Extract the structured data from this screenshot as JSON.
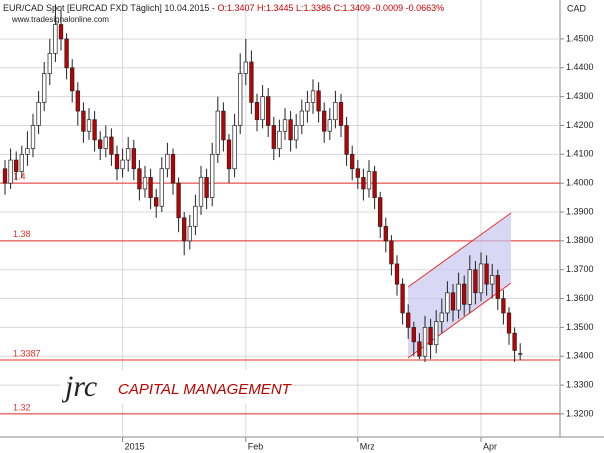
{
  "chart_data": {
    "type": "candlestick",
    "title": "EUR/CAD Spot [EURCAD FXD  Täglich] 10.04.2015 -",
    "ohlc_label": "O:1.3407 H:1.3445 L:1.3386 C:1.3409 -0.0009 -0.0663%",
    "source": "www.tradesignalonline.com",
    "currency": "CAD",
    "logo_mark": "jrc",
    "logo_text": "CAPITAL MANAGEMENT",
    "up_color": "#ffffff",
    "down_color": "#c00000",
    "line_color": "#e8302a",
    "categories": [
      null,
      null,
      null,
      null,
      null,
      null,
      null,
      null,
      null,
      null,
      null,
      null,
      null,
      null,
      null,
      null,
      null,
      null,
      null,
      null,
      null,
      "2015",
      null,
      null,
      null,
      null,
      null,
      null,
      null,
      null,
      null,
      null,
      null,
      null,
      null,
      null,
      null,
      null,
      null,
      null,
      null,
      null,
      null,
      "Feb",
      null,
      null,
      null,
      null,
      null,
      null,
      null,
      null,
      null,
      null,
      null,
      null,
      null,
      null,
      null,
      null,
      null,
      null,
      null,
      "Mrz",
      null,
      null,
      null,
      null,
      null,
      null,
      null,
      null,
      null,
      null,
      null,
      null,
      null,
      null,
      null,
      null,
      null,
      null,
      null,
      null,
      null,
      "Apr",
      null,
      null,
      null,
      null,
      null,
      null,
      null
    ],
    "open": [
      1.405,
      1.4,
      1.408,
      1.404,
      1.41,
      1.412,
      1.42,
      1.428,
      1.438,
      1.445,
      1.455,
      1.45,
      1.44,
      1.432,
      1.425,
      1.418,
      1.422,
      1.415,
      1.412,
      1.416,
      1.41,
      1.405,
      1.408,
      1.412,
      1.405,
      1.398,
      1.402,
      1.395,
      1.392,
      1.405,
      1.41,
      1.4,
      1.388,
      1.38,
      1.385,
      1.392,
      1.402,
      1.395,
      1.41,
      1.425,
      1.415,
      1.405,
      1.42,
      1.438,
      1.442,
      1.428,
      1.422,
      1.43,
      1.42,
      1.412,
      1.418,
      1.422,
      1.415,
      1.42,
      1.425,
      1.428,
      1.432,
      1.425,
      1.418,
      1.422,
      1.428,
      1.42,
      1.41,
      1.405,
      1.402,
      1.398,
      1.404,
      1.395,
      1.385,
      1.38,
      1.372,
      1.365,
      1.355,
      1.35,
      1.345,
      1.34,
      1.35,
      1.344,
      1.352,
      1.355,
      1.362,
      1.356,
      1.365,
      1.358,
      1.37,
      1.362,
      1.372,
      1.365,
      1.368,
      1.36,
      1.355,
      1.348,
      1.3407
    ],
    "high": [
      1.408,
      1.412,
      1.411,
      1.413,
      1.418,
      1.424,
      1.432,
      1.442,
      1.45,
      1.462,
      1.46,
      1.452,
      1.443,
      1.435,
      1.428,
      1.426,
      1.425,
      1.418,
      1.42,
      1.419,
      1.413,
      1.412,
      1.416,
      1.415,
      1.408,
      1.406,
      1.405,
      1.398,
      1.409,
      1.414,
      1.412,
      1.402,
      1.39,
      1.389,
      1.396,
      1.406,
      1.405,
      1.414,
      1.43,
      1.428,
      1.417,
      1.424,
      1.445,
      1.45,
      1.446,
      1.431,
      1.434,
      1.433,
      1.423,
      1.422,
      1.426,
      1.425,
      1.424,
      1.429,
      1.432,
      1.436,
      1.435,
      1.428,
      1.426,
      1.432,
      1.431,
      1.423,
      1.413,
      1.408,
      1.405,
      1.408,
      1.406,
      1.397,
      1.388,
      1.382,
      1.375,
      1.367,
      1.358,
      1.352,
      1.348,
      1.354,
      1.353,
      1.356,
      1.36,
      1.366,
      1.365,
      1.369,
      1.368,
      1.375,
      1.373,
      1.376,
      1.375,
      1.372,
      1.37,
      1.363,
      1.357,
      1.35,
      1.3445
    ],
    "low": [
      1.396,
      1.398,
      1.401,
      1.402,
      1.406,
      1.409,
      1.417,
      1.425,
      1.434,
      1.442,
      1.446,
      1.436,
      1.428,
      1.42,
      1.414,
      1.415,
      1.411,
      1.408,
      1.409,
      1.406,
      1.401,
      1.402,
      1.404,
      1.401,
      1.394,
      1.395,
      1.391,
      1.388,
      1.39,
      1.402,
      1.396,
      1.383,
      1.375,
      1.377,
      1.382,
      1.389,
      1.391,
      1.392,
      1.407,
      1.411,
      1.4,
      1.402,
      1.417,
      1.434,
      1.424,
      1.418,
      1.419,
      1.416,
      1.408,
      1.409,
      1.415,
      1.411,
      1.412,
      1.417,
      1.421,
      1.424,
      1.421,
      1.414,
      1.415,
      1.419,
      1.416,
      1.406,
      1.401,
      1.398,
      1.394,
      1.395,
      1.391,
      1.381,
      1.376,
      1.368,
      1.361,
      1.351,
      1.346,
      1.34,
      1.339,
      1.338,
      1.339,
      1.341,
      1.348,
      1.352,
      1.352,
      1.353,
      1.354,
      1.355,
      1.358,
      1.359,
      1.361,
      1.36,
      1.356,
      1.351,
      1.344,
      1.338,
      1.3386
    ],
    "close": [
      1.4,
      1.408,
      1.404,
      1.41,
      1.412,
      1.42,
      1.428,
      1.438,
      1.445,
      1.455,
      1.45,
      1.44,
      1.432,
      1.425,
      1.418,
      1.422,
      1.415,
      1.412,
      1.416,
      1.41,
      1.405,
      1.408,
      1.412,
      1.405,
      1.398,
      1.402,
      1.395,
      1.392,
      1.405,
      1.41,
      1.4,
      1.388,
      1.38,
      1.385,
      1.392,
      1.402,
      1.395,
      1.41,
      1.425,
      1.415,
      1.405,
      1.42,
      1.438,
      1.442,
      1.428,
      1.422,
      1.43,
      1.42,
      1.412,
      1.418,
      1.422,
      1.415,
      1.42,
      1.425,
      1.428,
      1.432,
      1.425,
      1.418,
      1.422,
      1.428,
      1.42,
      1.41,
      1.405,
      1.402,
      1.398,
      1.404,
      1.395,
      1.385,
      1.38,
      1.372,
      1.365,
      1.355,
      1.35,
      1.345,
      1.34,
      1.35,
      1.344,
      1.352,
      1.355,
      1.362,
      1.356,
      1.365,
      1.358,
      1.37,
      1.362,
      1.372,
      1.365,
      1.368,
      1.36,
      1.355,
      1.348,
      1.342,
      1.3409
    ],
    "ylim": [
      1.312,
      1.4635
    ],
    "yticks": [
      {
        "value": 1.32,
        "label": "1.3200"
      },
      {
        "value": 1.33,
        "label": "1.3300"
      },
      {
        "value": 1.34,
        "label": "1.3400"
      },
      {
        "value": 1.35,
        "label": "1.3500"
      },
      {
        "value": 1.36,
        "label": "1.3600"
      },
      {
        "value": 1.37,
        "label": "1.3700"
      },
      {
        "value": 1.38,
        "label": "1.3800"
      },
      {
        "value": 1.39,
        "label": "1.3900"
      },
      {
        "value": 1.4,
        "label": "1.4000"
      },
      {
        "value": 1.41,
        "label": "1.4100"
      },
      {
        "value": 1.42,
        "label": "1.4200"
      },
      {
        "value": 1.43,
        "label": "1.4300"
      },
      {
        "value": 1.44,
        "label": "1.4400"
      },
      {
        "value": 1.45,
        "label": "1.4500"
      }
    ],
    "hlines": [
      {
        "value": 1.4,
        "label": "1.4"
      },
      {
        "value": 1.38,
        "label": "1.38"
      },
      {
        "value": 1.3387,
        "label": "1.3387"
      },
      {
        "value": 1.32,
        "label": "1.32"
      }
    ],
    "grid": true
  }
}
